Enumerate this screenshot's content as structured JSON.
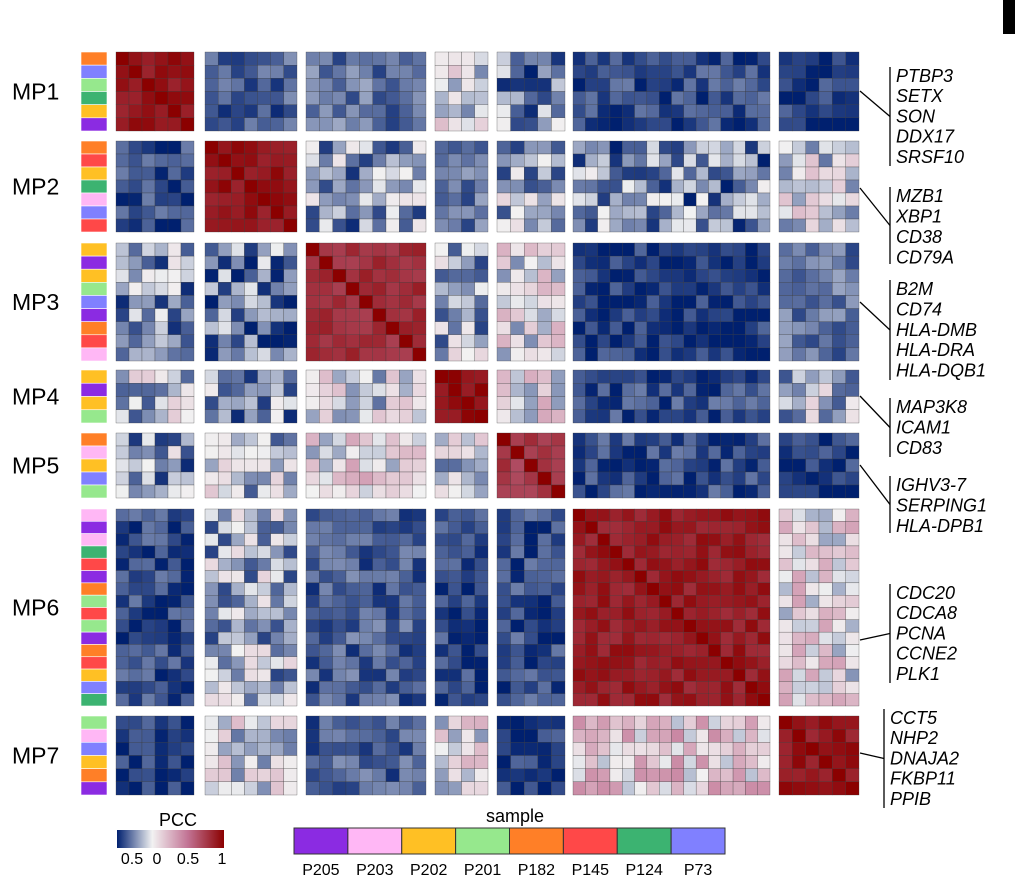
{
  "chart_data": {
    "type": "heatmap",
    "title": "",
    "color_scale": {
      "title": "PCC",
      "tick_labels": [
        "0.5",
        "0",
        "0.5",
        "1"
      ],
      "stops": [
        {
          "value": -0.5,
          "color": "#00206f"
        },
        {
          "value": 0,
          "color": "#f2f2f2"
        },
        {
          "value": 0.5,
          "color": "#c27495"
        },
        {
          "value": 1,
          "color": "#8b0000"
        }
      ]
    },
    "samples": {
      "title": "sample",
      "items": [
        {
          "name": "P205",
          "color": "#8b2be2"
        },
        {
          "name": "P203",
          "color": "#ffb7f5"
        },
        {
          "name": "P202",
          "color": "#ffc024"
        },
        {
          "name": "P201",
          "color": "#96e88d"
        },
        {
          "name": "P182",
          "color": "#ff7f27"
        },
        {
          "name": "P145",
          "color": "#ff4848"
        },
        {
          "name": "P124",
          "color": "#3cb371"
        },
        {
          "name": "P73",
          "color": "#8080ff"
        }
      ]
    },
    "meta_programs": [
      {
        "name": "MP1",
        "n": 6,
        "sample_bar": [
          "P182",
          "P73",
          "P201",
          "P124",
          "P202",
          "P205"
        ]
      },
      {
        "name": "MP2",
        "n": 7,
        "sample_bar": [
          "P182",
          "P145",
          "P202",
          "P124",
          "P203",
          "P73",
          "P145"
        ]
      },
      {
        "name": "MP3",
        "n": 9,
        "sample_bar": [
          "P202",
          "P205",
          "P202",
          "P201",
          "P73",
          "P205",
          "P182",
          "P145",
          "P203"
        ]
      },
      {
        "name": "MP4",
        "n": 4,
        "sample_bar": [
          "P202",
          "P205",
          "P202",
          "P201"
        ]
      },
      {
        "name": "MP5",
        "n": 5,
        "sample_bar": [
          "P182",
          "P203",
          "P202",
          "P73",
          "P201"
        ]
      },
      {
        "name": "MP6",
        "n": 16,
        "sample_bar": [
          "P203",
          "P205",
          "P203",
          "P124",
          "P145",
          "P205",
          "P182",
          "P201",
          "P145",
          "P201",
          "P205",
          "P182",
          "P145",
          "P202",
          "P73",
          "P124"
        ]
      },
      {
        "name": "MP7",
        "n": 6,
        "sample_bar": [
          "P201",
          "P203",
          "P73",
          "P202",
          "P182",
          "P205"
        ]
      }
    ],
    "block_mean_pcc": [
      [
        0.9,
        -0.35,
        -0.3,
        -0.05,
        -0.25,
        -0.4,
        -0.45
      ],
      [
        -0.4,
        0.92,
        -0.2,
        -0.3,
        -0.15,
        -0.25,
        -0.05
      ],
      [
        -0.2,
        -0.25,
        0.8,
        -0.15,
        0.0,
        -0.45,
        -0.3
      ],
      [
        -0.1,
        -0.2,
        -0.05,
        0.95,
        0.05,
        -0.4,
        -0.15
      ],
      [
        -0.2,
        -0.1,
        0.05,
        -0.05,
        0.75,
        -0.4,
        -0.45
      ],
      [
        -0.4,
        -0.15,
        -0.35,
        -0.4,
        -0.4,
        0.88,
        0.05
      ],
      [
        -0.45,
        -0.05,
        -0.35,
        0.0,
        -0.45,
        0.15,
        0.9
      ]
    ],
    "gene_groups": [
      {
        "mp": "MP1",
        "genes": [
          "PTBP3",
          "SETX",
          "SON",
          "DDX17",
          "SRSF10"
        ]
      },
      {
        "mp": "MP2",
        "genes": [
          "MZB1",
          "XBP1",
          "CD38",
          "CD79A"
        ]
      },
      {
        "mp": "MP3",
        "genes": [
          "B2M",
          "CD74",
          "HLA-DMB",
          "HLA-DRA",
          "HLA-DQB1"
        ]
      },
      {
        "mp": "MP4",
        "genes": [
          "MAP3K8",
          "ICAM1",
          "CD83"
        ]
      },
      {
        "mp": "MP5",
        "genes": [
          "IGHV3-7",
          "SERPING1",
          "HLA-DPB1"
        ]
      },
      {
        "mp": "MP6",
        "genes": [
          "CDC20",
          "CDCA8",
          "PCNA",
          "CCNE2",
          "PLK1"
        ]
      },
      {
        "mp": "MP7",
        "genes": [
          "CCT5",
          "NHP2",
          "DNAJA2",
          "FKBP11",
          "PPIB"
        ]
      }
    ]
  }
}
